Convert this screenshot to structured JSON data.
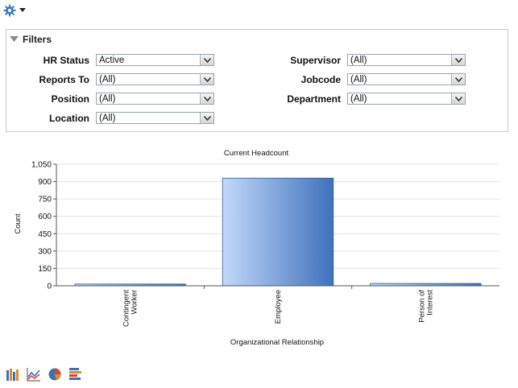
{
  "filters": {
    "title": "Filters",
    "left": [
      {
        "label": "HR Status",
        "value": "Active"
      },
      {
        "label": "Reports To",
        "value": "(All)"
      },
      {
        "label": "Position",
        "value": "(All)"
      },
      {
        "label": "Location",
        "value": "(All)"
      }
    ],
    "right": [
      {
        "label": "Supervisor",
        "value": "(All)"
      },
      {
        "label": "Jobcode",
        "value": "(All)"
      },
      {
        "label": "Department",
        "value": "(All)"
      }
    ]
  },
  "chart_data": {
    "type": "bar",
    "title": "Current Headcount",
    "xlabel": "Organizational Relationship",
    "ylabel": "Count",
    "categories": [
      "Contingent Worker",
      "Employee",
      "Person of Interest"
    ],
    "category_lines": [
      [
        "Contingent",
        "Worker"
      ],
      [
        "Employee"
      ],
      [
        "Person of",
        "Interest"
      ]
    ],
    "values": [
      15,
      930,
      20
    ],
    "ylim": [
      0,
      1050
    ],
    "yticks": [
      0,
      150,
      300,
      450,
      600,
      750,
      900,
      1050
    ],
    "ytick_labels": [
      "0",
      "150",
      "300",
      "450",
      "600",
      "750",
      "900",
      "1,050"
    ],
    "bar_gradient": [
      "#c2d8fa",
      "#3f71bd"
    ]
  },
  "toolbar": {
    "icons": [
      "bar-chart-icon",
      "line-chart-icon",
      "pie-chart-icon",
      "horizontal-bar-chart-icon"
    ]
  }
}
